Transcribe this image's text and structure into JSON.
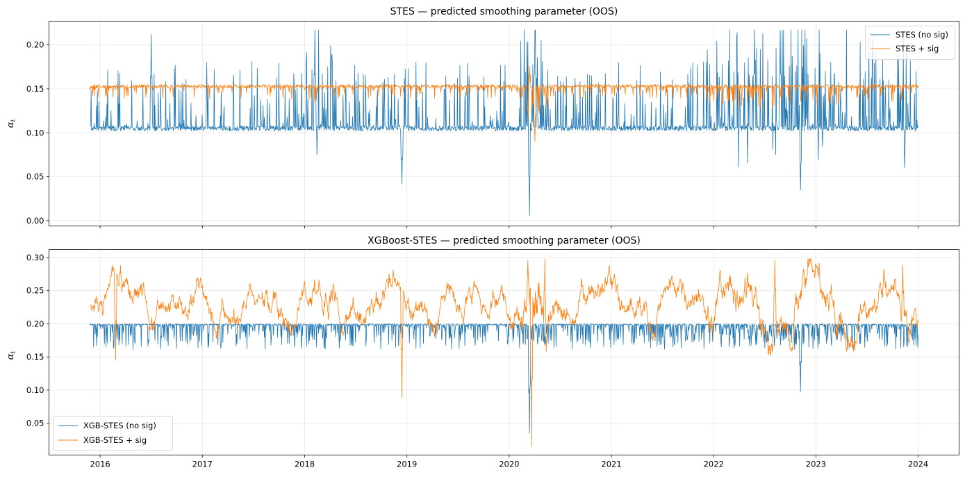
{
  "chart_data": [
    {
      "type": "line",
      "title": "STES — predicted smoothing parameter (OOS)",
      "xlabel": "",
      "ylabel": "α",
      "ylabel_subscript": "t",
      "xlim": [
        2015.5,
        2024.4
      ],
      "ylim": [
        -0.006,
        0.227
      ],
      "yticks": [
        0.0,
        0.05,
        0.1,
        0.15,
        0.2
      ],
      "ytick_labels": [
        "0.00",
        "0.05",
        "0.10",
        "0.15",
        "0.20"
      ],
      "xticks": [
        2016,
        2017,
        2018,
        2019,
        2020,
        2021,
        2022,
        2023,
        2024
      ],
      "xtick_labels": [],
      "grid": true,
      "legend": "upper-right",
      "x_range": [
        2015.9,
        2024.0
      ],
      "series": [
        {
          "name": "STES (no sig)",
          "color": "#1f77b4",
          "baseline": 0.105,
          "typical_range": [
            0.09,
            0.16
          ],
          "max": 0.217,
          "min": 0.006,
          "notable_points": [
            {
              "x": 2016.5,
              "y": 0.212
            },
            {
              "x": 2018.1,
              "y": 0.217
            },
            {
              "x": 2018.95,
              "y": 0.042
            },
            {
              "x": 2020.2,
              "y": 0.006
            },
            {
              "x": 2020.25,
              "y": 0.217
            },
            {
              "x": 2022.4,
              "y": 0.217
            },
            {
              "x": 2022.65,
              "y": 0.217
            },
            {
              "x": 2022.85,
              "y": 0.035
            }
          ]
        },
        {
          "name": "STES + sig",
          "color": "#ff7f0e",
          "baseline": 0.153,
          "typical_range": [
            0.14,
            0.157
          ],
          "max": 0.176,
          "min": 0.09,
          "notable_points": [
            {
              "x": 2020.2,
              "y": 0.176
            },
            {
              "x": 2020.25,
              "y": 0.09
            }
          ]
        }
      ]
    },
    {
      "type": "line",
      "title": "XGBoost-STES — predicted smoothing parameter (OOS)",
      "xlabel": "",
      "ylabel": "α",
      "ylabel_subscript": "t",
      "xlim": [
        2015.5,
        2024.4
      ],
      "ylim": [
        0.002,
        0.312
      ],
      "yticks": [
        0.05,
        0.1,
        0.15,
        0.2,
        0.25,
        0.3
      ],
      "ytick_labels": [
        "0.05",
        "0.10",
        "0.15",
        "0.20",
        "0.25",
        "0.30"
      ],
      "xticks": [
        2016,
        2017,
        2018,
        2019,
        2020,
        2021,
        2022,
        2023,
        2024
      ],
      "xtick_labels": [
        "2016",
        "2017",
        "2018",
        "2019",
        "2020",
        "2021",
        "2022",
        "2023",
        "2024"
      ],
      "grid": true,
      "legend": "lower-left",
      "x_range": [
        2015.9,
        2024.0
      ],
      "series": [
        {
          "name": "XGB-STES (no sig)",
          "color": "#1f77b4",
          "baseline": 0.199,
          "typical_range": [
            0.17,
            0.2
          ],
          "max": 0.2,
          "min": 0.035,
          "notable_points": [
            {
              "x": 2020.2,
              "y": 0.035
            },
            {
              "x": 2022.85,
              "y": 0.098
            }
          ]
        },
        {
          "name": "XGB-STES + sig",
          "color": "#ff7f0e",
          "baseline": 0.23,
          "typical_range": [
            0.15,
            0.27
          ],
          "max": 0.298,
          "min": 0.015,
          "notable_points": [
            {
              "x": 2016.2,
              "y": 0.288
            },
            {
              "x": 2016.15,
              "y": 0.145
            },
            {
              "x": 2018.95,
              "y": 0.088
            },
            {
              "x": 2020.22,
              "y": 0.015
            },
            {
              "x": 2020.35,
              "y": 0.298
            },
            {
              "x": 2022.6,
              "y": 0.296
            },
            {
              "x": 2023.85,
              "y": 0.288
            }
          ]
        }
      ]
    }
  ]
}
